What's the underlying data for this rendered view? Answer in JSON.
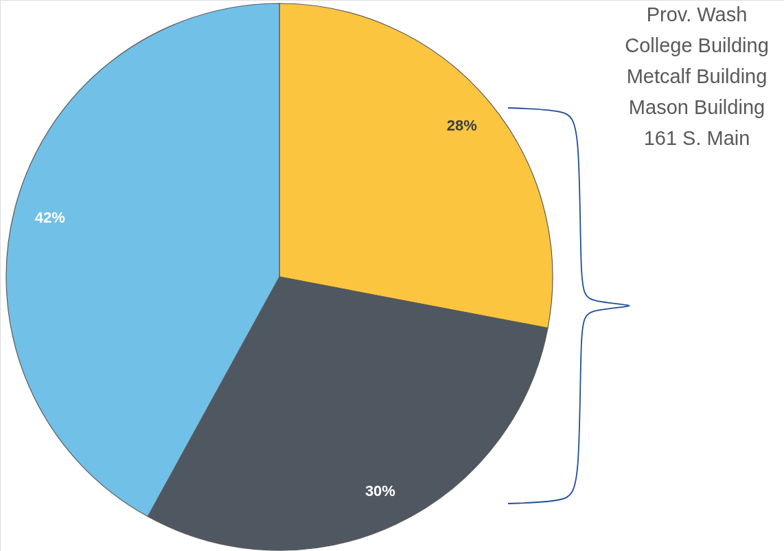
{
  "chart_data": {
    "type": "pie",
    "categories": [
      null,
      null,
      null
    ],
    "values": [
      28,
      30,
      42
    ],
    "colors": [
      "#fbc53f",
      "#4f5760",
      "#71c0e8"
    ],
    "value_labels": [
      "28%",
      "30%",
      "42%"
    ],
    "annotations": [
      "Prov. Wash",
      "College Building",
      "Metcalf Building",
      "Mason Building",
      "161 S. Main"
    ]
  }
}
